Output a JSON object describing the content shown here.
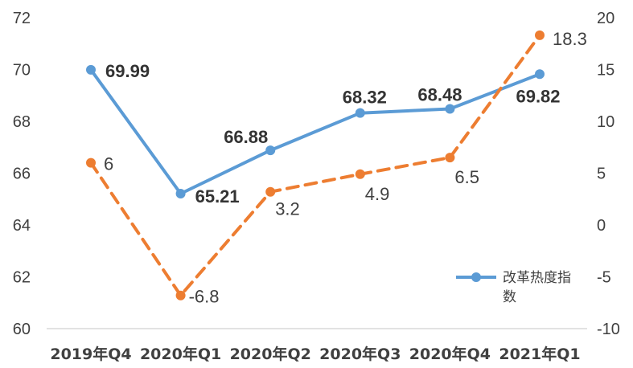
{
  "chart_data": {
    "type": "line",
    "categories": [
      "2019年Q4",
      "2020年Q1",
      "2020年Q2",
      "2020年Q3",
      "2020年Q4",
      "2021年Q1"
    ],
    "series": [
      {
        "name": "改革热度指数",
        "axis": "left",
        "color": "#5B9BD5",
        "style": "solid",
        "values": [
          69.99,
          65.21,
          66.88,
          68.32,
          68.48,
          69.82
        ],
        "data_labels": [
          "69.99",
          "65.21",
          "66.88",
          "68.32",
          "68.48",
          "69.82"
        ]
      },
      {
        "axis": "right",
        "color": "#ED7D31",
        "style": "dashed",
        "values": [
          6,
          -6.8,
          3.2,
          4.9,
          6.5,
          18.3
        ],
        "data_labels": [
          "6",
          "-6.8",
          "3.2",
          "4.9",
          "6.5",
          "18.3"
        ]
      }
    ],
    "left_axis": {
      "ylim": [
        60,
        72
      ],
      "ticks": [
        "60",
        "62",
        "64",
        "66",
        "68",
        "70",
        "72"
      ]
    },
    "right_axis": {
      "ylim": [
        -10,
        20
      ],
      "ticks": [
        "-10",
        "-5",
        "0",
        "5",
        "10",
        "15",
        "20"
      ]
    },
    "legend": {
      "position": "bottom-right",
      "entries": [
        "改革热度指数"
      ]
    },
    "grid": false
  }
}
